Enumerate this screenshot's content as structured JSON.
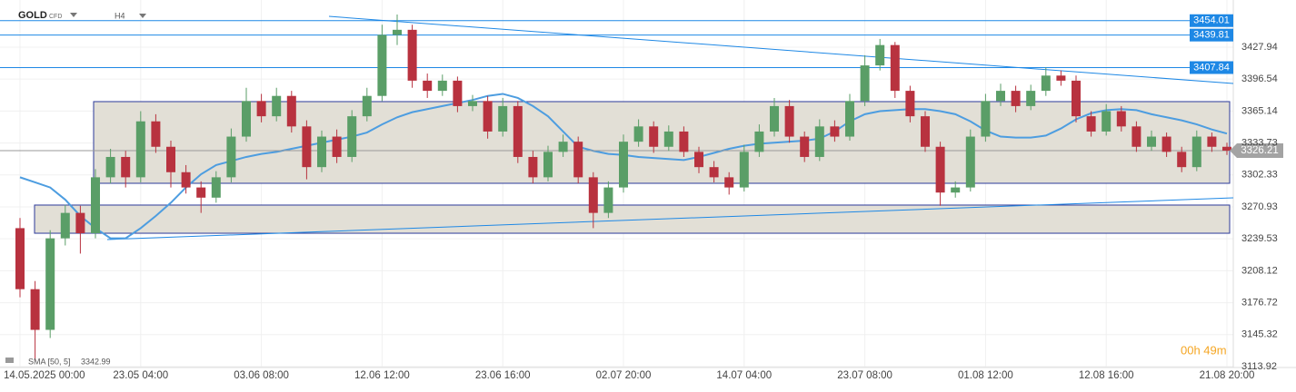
{
  "chart_data": {
    "type": "candlestick",
    "symbol": "GOLD",
    "symbol_type": "CFD",
    "timeframe": "H4",
    "countdown": "00h 49m",
    "categories": [
      "14.05.2025 00:00",
      null,
      null,
      null,
      null,
      null,
      null,
      null,
      "23.05 04:00",
      null,
      null,
      null,
      null,
      null,
      null,
      null,
      "03.06 08:00",
      null,
      null,
      null,
      null,
      null,
      null,
      null,
      "12.06 12:00",
      null,
      null,
      null,
      null,
      null,
      null,
      null,
      "23.06 16:00",
      null,
      null,
      null,
      null,
      null,
      null,
      null,
      "02.07 20:00",
      null,
      null,
      null,
      null,
      null,
      null,
      null,
      "14.07 04:00",
      null,
      null,
      null,
      null,
      null,
      null,
      null,
      "23.07 08:00",
      null,
      null,
      null,
      null,
      null,
      null,
      null,
      "01.08 12:00",
      null,
      null,
      null,
      null,
      null,
      null,
      null,
      "12.08 16:00",
      null,
      null,
      null,
      null,
      null,
      null,
      null,
      "21.08 20:00"
    ],
    "candles": {
      "up_color": "#5a9e67",
      "down_color": "#b8323f",
      "open": [
        3250,
        3190,
        3150,
        3240,
        3265,
        3245,
        3300,
        3320,
        3300,
        3355,
        3330,
        3305,
        3290,
        3280,
        3300,
        3340,
        3375,
        3360,
        3380,
        3350,
        3310,
        3340,
        3320,
        3360,
        3380,
        3440,
        3445,
        3395,
        3385,
        3395,
        3370,
        3375,
        3345,
        3370,
        3320,
        3300,
        3325,
        3335,
        3300,
        3265,
        3290,
        3335,
        3350,
        3330,
        3345,
        3325,
        3310,
        3300,
        3290,
        3325,
        3345,
        3370,
        3340,
        3320,
        3350,
        3340,
        3375,
        3410,
        3430,
        3385,
        3360,
        3330,
        3285,
        3290,
        3340,
        3375,
        3385,
        3370,
        3385,
        3400,
        3395,
        3360,
        3345,
        3365,
        3350,
        3330,
        3340,
        3325,
        3310,
        3340,
        3330
      ],
      "high": [
        3260,
        3198,
        3248,
        3273,
        3272,
        3308,
        3328,
        3326,
        3365,
        3362,
        3336,
        3312,
        3296,
        3306,
        3348,
        3388,
        3382,
        3388,
        3385,
        3356,
        3346,
        3347,
        3366,
        3388,
        3450,
        3460,
        3450,
        3402,
        3401,
        3399,
        3381,
        3380,
        3378,
        3375,
        3326,
        3331,
        3342,
        3340,
        3305,
        3296,
        3342,
        3357,
        3355,
        3351,
        3350,
        3330,
        3316,
        3305,
        3332,
        3352,
        3378,
        3376,
        3345,
        3357,
        3356,
        3382,
        3420,
        3436,
        3433,
        3390,
        3365,
        3335,
        3296,
        3347,
        3382,
        3392,
        3390,
        3391,
        3408,
        3405,
        3400,
        3365,
        3372,
        3370,
        3355,
        3346,
        3344,
        3330,
        3346,
        3344,
        3334
      ],
      "low": [
        3182,
        3120,
        3142,
        3233,
        3225,
        3240,
        3294,
        3290,
        3295,
        3324,
        3290,
        3284,
        3265,
        3275,
        3295,
        3335,
        3354,
        3355,
        3344,
        3298,
        3305,
        3314,
        3315,
        3355,
        3375,
        3430,
        3388,
        3378,
        3380,
        3364,
        3365,
        3338,
        3340,
        3314,
        3294,
        3296,
        3320,
        3294,
        3250,
        3260,
        3285,
        3330,
        3324,
        3326,
        3320,
        3304,
        3295,
        3283,
        3286,
        3320,
        3340,
        3334,
        3315,
        3316,
        3335,
        3336,
        3370,
        3405,
        3378,
        3354,
        3325,
        3272,
        3280,
        3286,
        3335,
        3370,
        3364,
        3366,
        3380,
        3390,
        3354,
        3340,
        3341,
        3345,
        3325,
        3326,
        3320,
        3305,
        3306,
        3325,
        3322
      ],
      "close": [
        3190,
        3150,
        3240,
        3265,
        3245,
        3300,
        3320,
        3300,
        3355,
        3330,
        3305,
        3290,
        3280,
        3300,
        3340,
        3375,
        3360,
        3380,
        3350,
        3310,
        3340,
        3320,
        3360,
        3380,
        3440,
        3445,
        3395,
        3385,
        3395,
        3370,
        3375,
        3345,
        3370,
        3320,
        3300,
        3325,
        3335,
        3300,
        3265,
        3290,
        3335,
        3350,
        3330,
        3345,
        3325,
        3310,
        3300,
        3290,
        3325,
        3345,
        3370,
        3340,
        3320,
        3350,
        3340,
        3375,
        3410,
        3430,
        3385,
        3360,
        3330,
        3285,
        3290,
        3340,
        3375,
        3385,
        3370,
        3385,
        3400,
        3395,
        3360,
        3345,
        3365,
        3350,
        3330,
        3340,
        3325,
        3310,
        3340,
        3330,
        3326.21
      ]
    },
    "sma": {
      "name": "SMA [50, 5]",
      "color": "#4d9de0",
      "values": [
        3300,
        3295,
        3290,
        3278,
        3262,
        3250,
        3240,
        3240,
        3250,
        3262,
        3275,
        3290,
        3303,
        3312,
        3316,
        3320,
        3323,
        3325,
        3328,
        3331,
        3334,
        3337,
        3340,
        3344,
        3352,
        3359,
        3364,
        3367,
        3370,
        3373,
        3376,
        3380,
        3382,
        3378,
        3370,
        3360,
        3345,
        3330,
        3326,
        3323,
        3322,
        3320,
        3319,
        3318,
        3317,
        3320,
        3324,
        3328,
        3331,
        3333,
        3334,
        3335,
        3336,
        3338,
        3345,
        3355,
        3362,
        3365,
        3366,
        3367,
        3367,
        3365,
        3362,
        3355,
        3346,
        3340,
        3339,
        3339,
        3341,
        3348,
        3357,
        3363,
        3366,
        3367,
        3366,
        3362,
        3359,
        3356,
        3352,
        3347,
        3342.99
      ]
    },
    "levels": [
      3454.01,
      3439.81,
      3407.84
    ],
    "level_color": "#1e88e5",
    "zones": [
      {
        "high": 3374.4,
        "low": 3294.1
      },
      {
        "high": 3272.7,
        "low": 3245.0
      }
    ],
    "trendlines": [
      {
        "start": 3458.2,
        "end": 3392.2
      },
      {
        "start": 3238.8,
        "end": 3279.8
      }
    ],
    "ylim": [
      3113.0,
      3474.3
    ],
    "yticks": [
      3427.94,
      3396.54,
      3365.14,
      3333.73,
      3302.33,
      3270.93,
      3239.53,
      3208.12,
      3176.72,
      3145.32,
      3113.92
    ],
    "grid": true
  }
}
